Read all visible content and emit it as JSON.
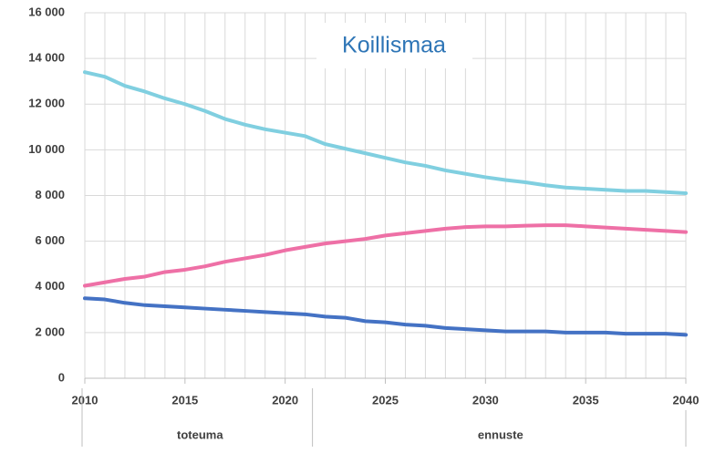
{
  "chart_data": {
    "type": "line",
    "title": "Koillismaa",
    "x": [
      2010,
      2011,
      2012,
      2013,
      2014,
      2015,
      2016,
      2017,
      2018,
      2019,
      2020,
      2021,
      2022,
      2023,
      2024,
      2025,
      2026,
      2027,
      2028,
      2029,
      2030,
      2031,
      2032,
      2033,
      2034,
      2035,
      2036,
      2037,
      2038,
      2039,
      2040
    ],
    "series": [
      {
        "color": "#80cfe0",
        "values": [
          13400,
          13200,
          12800,
          12550,
          12250,
          12000,
          11700,
          11350,
          11100,
          10900,
          10750,
          10600,
          10250,
          10050,
          9850,
          9650,
          9450,
          9300,
          9100,
          8950,
          8800,
          8680,
          8580,
          8450,
          8350,
          8300,
          8250,
          8200,
          8200,
          8150,
          8100
        ]
      },
      {
        "color": "#ee70a6",
        "values": [
          4050,
          4200,
          4350,
          4450,
          4650,
          4750,
          4900,
          5100,
          5250,
          5400,
          5600,
          5750,
          5900,
          6000,
          6100,
          6250,
          6350,
          6450,
          6550,
          6620,
          6650,
          6650,
          6680,
          6700,
          6700,
          6650,
          6600,
          6550,
          6500,
          6450,
          6400
        ]
      },
      {
        "color": "#4472c4",
        "values": [
          3500,
          3450,
          3300,
          3200,
          3150,
          3100,
          3050,
          3000,
          2950,
          2900,
          2850,
          2800,
          2700,
          2650,
          2500,
          2450,
          2350,
          2300,
          2200,
          2150,
          2100,
          2050,
          2050,
          2050,
          2000,
          2000,
          2000,
          1950,
          1950,
          1950,
          1900
        ]
      }
    ],
    "xlim": [
      2010,
      2040
    ],
    "xticks": [
      2010,
      2015,
      2020,
      2025,
      2030,
      2035,
      2040
    ],
    "ylim": [
      0,
      16000
    ],
    "yticks": [
      0,
      {
        "value": 2000,
        "label": "2 000"
      },
      {
        "value": 4000,
        "label": "4 000"
      },
      {
        "value": 6000,
        "label": "6 000"
      },
      {
        "value": 8000,
        "label": "8 000"
      },
      {
        "value": 10000,
        "label": "10 000"
      },
      {
        "value": 12000,
        "label": "12 000"
      },
      {
        "value": 14000,
        "label": "14 000"
      },
      {
        "value": 16000,
        "label": "16 000"
      }
    ],
    "grid": true,
    "groups": [
      {
        "label": "toteuma",
        "from": 2010,
        "to": 2021.5
      },
      {
        "label": "ennuste",
        "from": 2021.5,
        "to": 2040
      }
    ]
  }
}
